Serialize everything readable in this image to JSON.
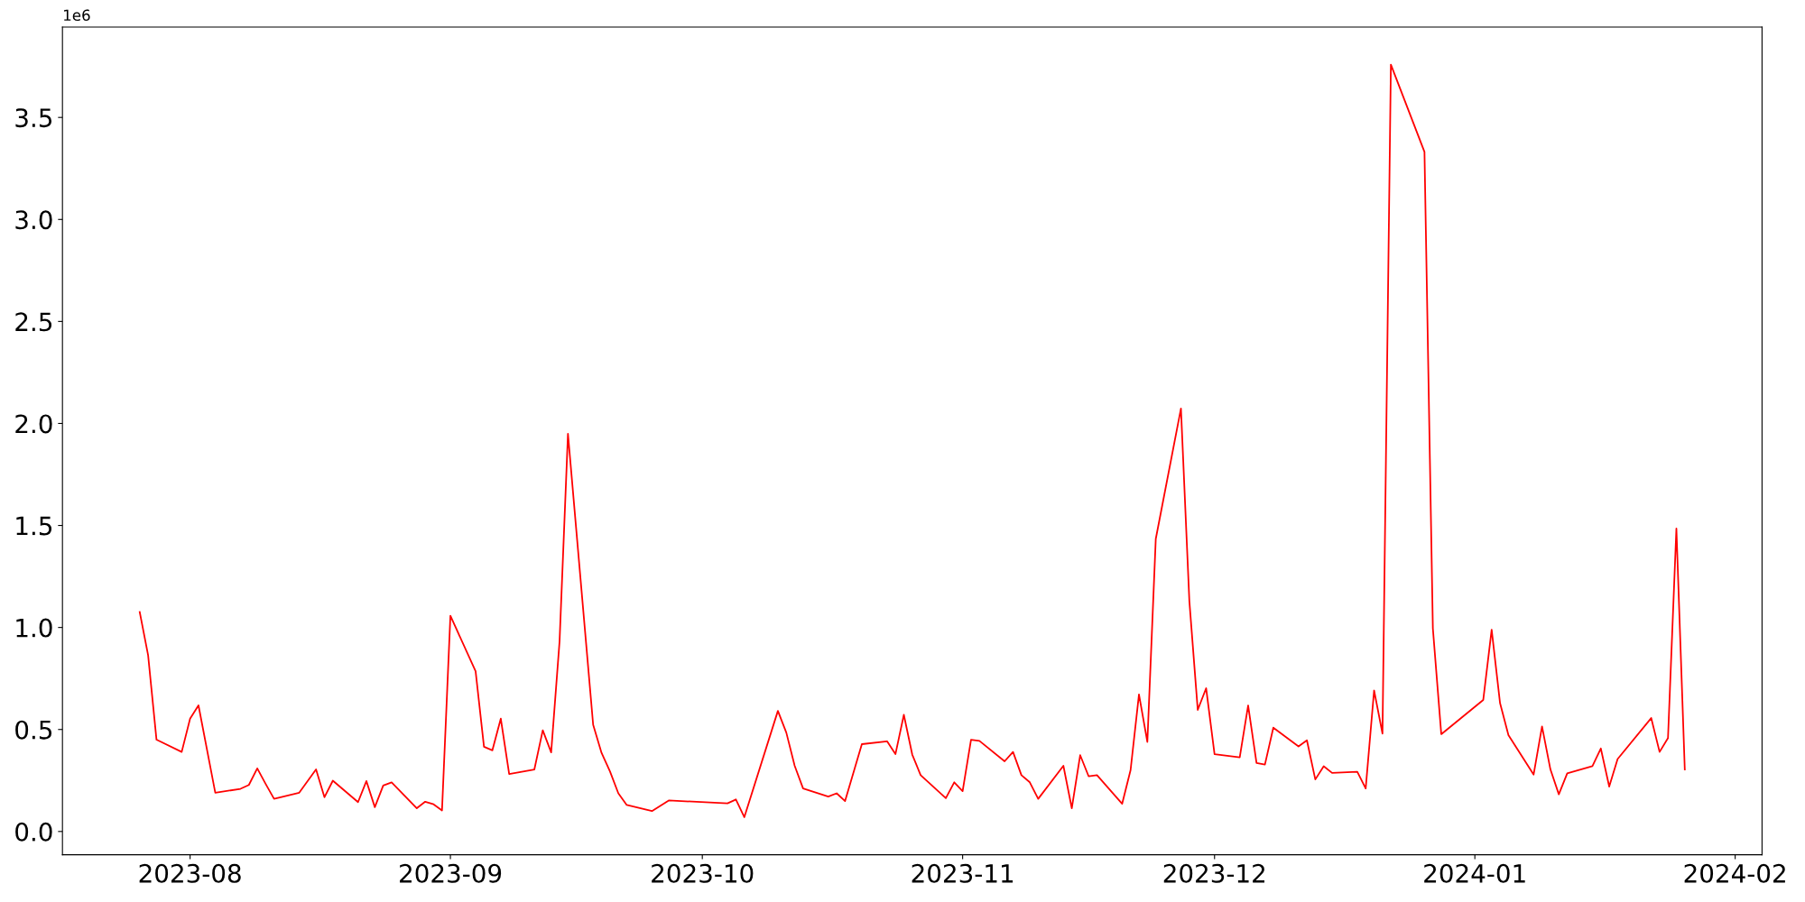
{
  "chart_data": {
    "type": "line",
    "annotations": [
      "1e6"
    ],
    "x": [
      "2023-07-26",
      "2023-07-27",
      "2023-07-28",
      "2023-07-31",
      "2023-08-01",
      "2023-08-02",
      "2023-08-04",
      "2023-08-07",
      "2023-08-08",
      "2023-08-09",
      "2023-08-10",
      "2023-08-11",
      "2023-08-14",
      "2023-08-16",
      "2023-08-17",
      "2023-08-18",
      "2023-08-21",
      "2023-08-22",
      "2023-08-23",
      "2023-08-24",
      "2023-08-25",
      "2023-08-28",
      "2023-08-29",
      "2023-08-30",
      "2023-08-31",
      "2023-09-01",
      "2023-09-04",
      "2023-09-05",
      "2023-09-06",
      "2023-09-07",
      "2023-09-08",
      "2023-09-11",
      "2023-09-12",
      "2023-09-13",
      "2023-09-14",
      "2023-09-15",
      "2023-09-18",
      "2023-09-19",
      "2023-09-20",
      "2023-09-21",
      "2023-09-22",
      "2023-09-25",
      "2023-09-27",
      "2023-10-04",
      "2023-10-05",
      "2023-10-06",
      "2023-10-10",
      "2023-10-11",
      "2023-10-12",
      "2023-10-13",
      "2023-10-16",
      "2023-10-17",
      "2023-10-18",
      "2023-10-20",
      "2023-10-23",
      "2023-10-24",
      "2023-10-25",
      "2023-10-26",
      "2023-10-27",
      "2023-10-30",
      "2023-10-31",
      "2023-11-01",
      "2023-11-02",
      "2023-11-03",
      "2023-11-06",
      "2023-11-07",
      "2023-11-08",
      "2023-11-09",
      "2023-11-10",
      "2023-11-13",
      "2023-11-14",
      "2023-11-15",
      "2023-11-16",
      "2023-11-17",
      "2023-11-20",
      "2023-11-21",
      "2023-11-22",
      "2023-11-23",
      "2023-11-24",
      "2023-11-27",
      "2023-11-28",
      "2023-11-29",
      "2023-11-30",
      "2023-12-01",
      "2023-12-04",
      "2023-12-05",
      "2023-12-06",
      "2023-12-07",
      "2023-12-08",
      "2023-12-11",
      "2023-12-12",
      "2023-12-13",
      "2023-12-14",
      "2023-12-15",
      "2023-12-18",
      "2023-12-19",
      "2023-12-20",
      "2023-12-21",
      "2023-12-22",
      "2023-12-26",
      "2023-12-27",
      "2023-12-28",
      "2024-01-02",
      "2024-01-03",
      "2024-01-04",
      "2024-01-05",
      "2024-01-08",
      "2024-01-09",
      "2024-01-10",
      "2024-01-11",
      "2024-01-12",
      "2024-01-15",
      "2024-01-16",
      "2024-01-17",
      "2024-01-18",
      "2024-01-22",
      "2024-01-23",
      "2024-01-24",
      "2024-01-25",
      "2024-01-26"
    ],
    "series": [
      {
        "color": "#ff0000",
        "values": [
          1.076,
          0.864,
          0.45,
          0.39,
          0.553,
          0.618,
          0.19,
          0.209,
          0.228,
          0.309,
          0.233,
          0.16,
          0.19,
          0.304,
          0.168,
          0.249,
          0.144,
          0.247,
          0.119,
          0.225,
          0.241,
          0.114,
          0.146,
          0.133,
          0.103,
          1.057,
          0.786,
          0.415,
          0.398,
          0.553,
          0.282,
          0.304,
          0.496,
          0.388,
          0.932,
          1.949,
          0.523,
          0.385,
          0.295,
          0.187,
          0.13,
          0.1,
          0.152,
          0.138,
          0.157,
          0.07,
          0.591,
          0.485,
          0.322,
          0.211,
          0.171,
          0.187,
          0.149,
          0.428,
          0.442,
          0.379,
          0.572,
          0.377,
          0.276,
          0.163,
          0.241,
          0.198,
          0.45,
          0.444,
          0.344,
          0.39,
          0.276,
          0.241,
          0.16,
          0.322,
          0.114,
          0.374,
          0.271,
          0.276,
          0.136,
          0.301,
          0.672,
          0.439,
          1.434,
          2.073,
          1.13,
          0.596,
          0.702,
          0.379,
          0.363,
          0.618,
          0.336,
          0.328,
          0.509,
          0.417,
          0.447,
          0.255,
          0.32,
          0.287,
          0.293,
          0.211,
          0.691,
          0.48,
          3.759,
          3.331,
          0.995,
          0.477,
          0.645,
          0.989,
          0.629,
          0.472,
          0.279,
          0.515,
          0.304,
          0.182,
          0.285,
          0.32,
          0.407,
          0.22,
          0.355,
          0.556,
          0.39,
          0.458,
          1.485,
          0.304
        ]
      }
    ],
    "xlim": [
      "2023-07-16T19:12",
      "2024-02-04T04:48"
    ],
    "xticks": [
      "2023-08",
      "2023-09",
      "2023-10",
      "2023-11",
      "2023-12",
      "2024-01",
      "2024-02"
    ],
    "ylim": [
      -0.114,
      3.943
    ],
    "yticks": [
      {
        "value": 0,
        "label": "0.0"
      },
      0.5,
      {
        "value": 1,
        "label": "1.0"
      },
      1.5,
      {
        "value": 2,
        "label": "2.0"
      },
      2.5,
      {
        "value": 3,
        "label": "3.0"
      },
      3.5
    ],
    "grid": false,
    "legend": false,
    "marker": "none",
    "line_style": "solid"
  }
}
